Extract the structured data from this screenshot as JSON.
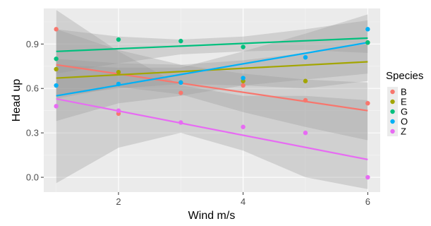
{
  "chart_data": {
    "type": "scatter",
    "xlabel": "Wind m/s",
    "ylabel": "Head up",
    "xlim": [
      0.8,
      6.2
    ],
    "ylim": [
      -0.1,
      1.14
    ],
    "x_ticks": [
      2,
      4,
      6
    ],
    "x_tick_labels": [
      "2",
      "4",
      "6"
    ],
    "y_ticks": [
      0.0,
      0.3,
      0.6,
      0.9
    ],
    "y_tick_labels": [
      "0.0",
      "0.3",
      "0.6",
      "0.9"
    ],
    "grid": true,
    "legend_title": "Species",
    "legend_position": "right",
    "series": [
      {
        "name": "B",
        "color": "#F8766D",
        "points": [
          {
            "x": 1,
            "y": 1.0
          },
          {
            "x": 2,
            "y": 0.43
          },
          {
            "x": 3,
            "y": 0.57
          },
          {
            "x": 4,
            "y": 0.62
          },
          {
            "x": 5,
            "y": 0.52
          },
          {
            "x": 6,
            "y": 0.5
          }
        ],
        "fit": {
          "x0": 1,
          "y0": 0.76,
          "x1": 6,
          "y1": 0.45
        },
        "ci_upper": [
          1.0,
          0.86,
          0.76,
          0.7,
          0.66,
          0.64
        ],
        "ci_lower": [
          0.53,
          0.61,
          0.56,
          0.44,
          0.34,
          0.25
        ]
      },
      {
        "name": "E",
        "color": "#A3A500",
        "points": [
          {
            "x": 1,
            "y": 0.73
          },
          {
            "x": 2,
            "y": 0.71
          },
          {
            "x": 3,
            "y": 0.64
          },
          {
            "x": 4,
            "y": 0.65
          },
          {
            "x": 5,
            "y": 0.65
          },
          {
            "x": 6,
            "y": 0.91
          }
        ],
        "fit": {
          "x0": 1,
          "y0": 0.67,
          "x1": 6,
          "y1": 0.78
        },
        "ci_upper": [
          0.8,
          0.77,
          0.76,
          0.79,
          0.84,
          0.9
        ],
        "ci_lower": [
          0.55,
          0.6,
          0.63,
          0.62,
          0.6,
          0.65
        ]
      },
      {
        "name": "G",
        "color": "#00BF7D",
        "points": [
          {
            "x": 1,
            "y": 0.8
          },
          {
            "x": 2,
            "y": 0.93
          },
          {
            "x": 3,
            "y": 0.92
          },
          {
            "x": 4,
            "y": 0.88
          },
          {
            "x": 6,
            "y": 0.91
          }
        ],
        "fit": {
          "x0": 1,
          "y0": 0.85,
          "x1": 6,
          "y1": 0.94
        },
        "ci_upper": [
          1.0,
          0.95,
          0.93,
          0.95,
          1.0,
          1.06
        ],
        "ci_lower": [
          0.7,
          0.77,
          0.83,
          0.85,
          0.86,
          0.84
        ]
      },
      {
        "name": "O",
        "color": "#00B0F6",
        "points": [
          {
            "x": 1,
            "y": 0.62
          },
          {
            "x": 2,
            "y": 0.63
          },
          {
            "x": 3,
            "y": 0.64
          },
          {
            "x": 4,
            "y": 0.67
          },
          {
            "x": 5,
            "y": 0.81
          },
          {
            "x": 6,
            "y": 1.0
          }
        ],
        "fit": {
          "x0": 1,
          "y0": 0.55,
          "x1": 6,
          "y1": 0.91
        },
        "ci_upper": [
          0.76,
          0.74,
          0.74,
          0.85,
          0.97,
          1.1
        ],
        "ci_lower": [
          0.38,
          0.5,
          0.55,
          0.62,
          0.66,
          0.7
        ]
      },
      {
        "name": "Z",
        "color": "#E76BF3",
        "points": [
          {
            "x": 1,
            "y": 0.48
          },
          {
            "x": 2,
            "y": 0.45
          },
          {
            "x": 3,
            "y": 0.37
          },
          {
            "x": 4,
            "y": 0.34
          },
          {
            "x": 5,
            "y": 0.3
          },
          {
            "x": 6,
            "y": 0.0
          }
        ],
        "fit": {
          "x0": 1,
          "y0": 0.53,
          "x1": 6,
          "y1": 0.12
        },
        "ci_upper": [
          1.13,
          0.85,
          0.62,
          0.55,
          0.55,
          0.52
        ],
        "ci_lower": [
          -0.04,
          0.2,
          0.3,
          0.18,
          0.0,
          -0.08
        ]
      }
    ]
  }
}
